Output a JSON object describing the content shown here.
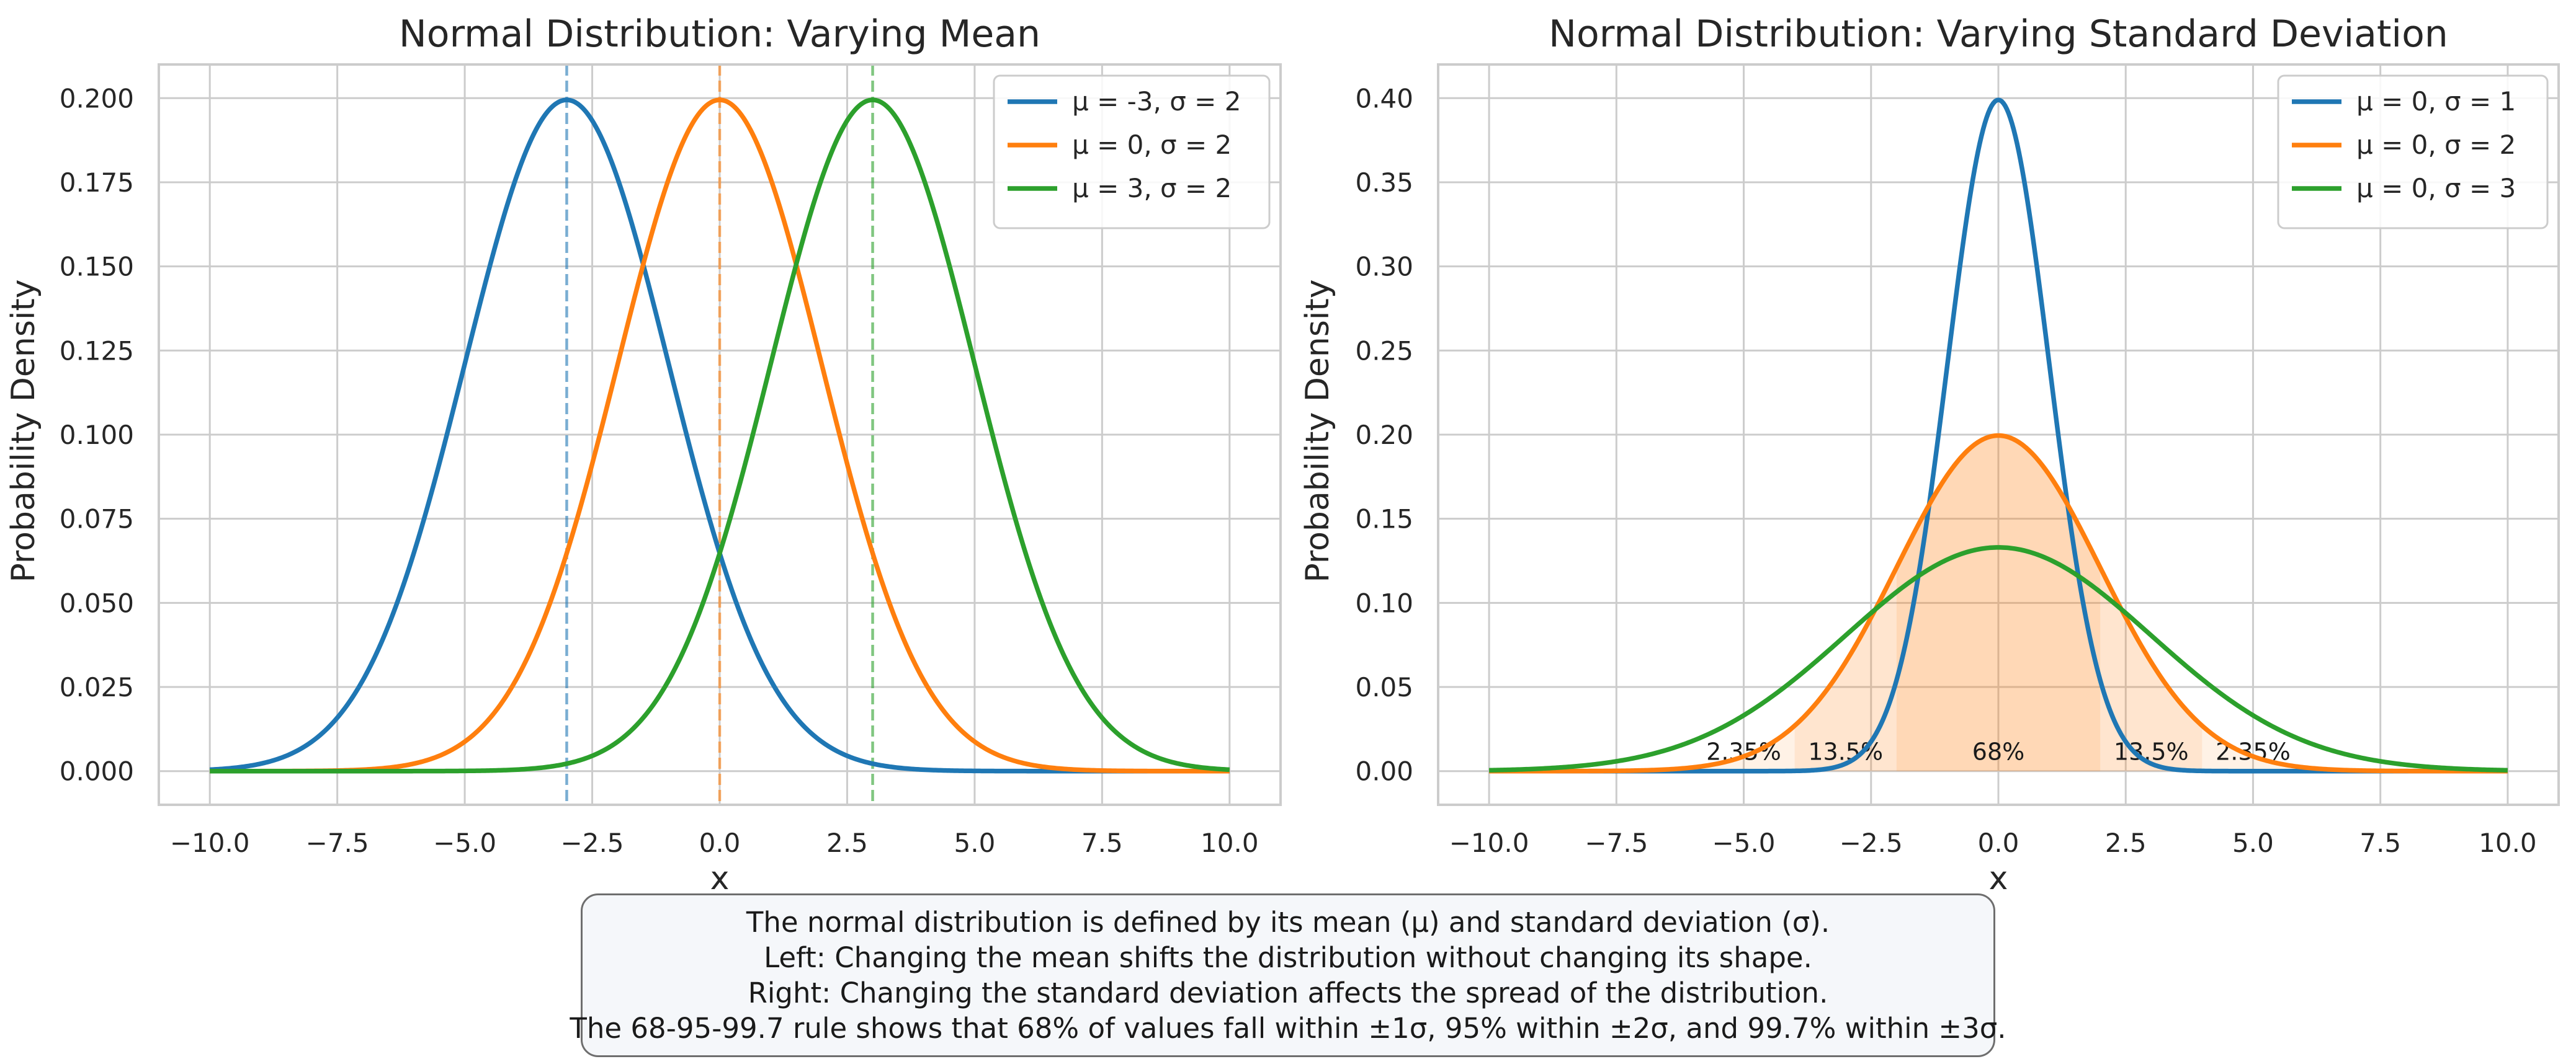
{
  "charts": [
    {
      "type": "line",
      "title": "Normal Distribution: Varying Mean",
      "xlabel": "x",
      "ylabel": "Probability Density",
      "xlim": [
        -11,
        11
      ],
      "ylim": [
        -0.01,
        0.21
      ],
      "xticks": [
        -10,
        -7.5,
        -5,
        -2.5,
        0,
        2.5,
        5,
        7.5,
        10
      ],
      "xtick_labels": [
        "−10.0",
        "−7.5",
        "−5.0",
        "−2.5",
        "0.0",
        "2.5",
        "5.0",
        "7.5",
        "10.0"
      ],
      "yticks": [
        0,
        0.025,
        0.05,
        0.075,
        0.1,
        0.125,
        0.15,
        0.175,
        0.2
      ],
      "ytick_labels": [
        "0.000",
        "0.025",
        "0.050",
        "0.075",
        "0.100",
        "0.125",
        "0.150",
        "0.175",
        "0.200"
      ],
      "legend_position": "top-right",
      "series": [
        {
          "name": "μ = -3, σ = 2",
          "mu": -3,
          "sigma": 2,
          "color": "#1f77b4",
          "mean_line": true
        },
        {
          "name": "μ = 0, σ = 2",
          "mu": 0,
          "sigma": 2,
          "color": "#ff7f0e",
          "mean_line": true
        },
        {
          "name": "μ = 3, σ = 2",
          "mu": 3,
          "sigma": 2,
          "color": "#2ca02c",
          "mean_line": true
        }
      ]
    },
    {
      "type": "line",
      "title": "Normal Distribution: Varying Standard Deviation",
      "xlabel": "x",
      "ylabel": "Probability Density",
      "xlim": [
        -11,
        11
      ],
      "ylim": [
        -0.02,
        0.42
      ],
      "xticks": [
        -10,
        -7.5,
        -5,
        -2.5,
        0,
        2.5,
        5,
        7.5,
        10
      ],
      "xtick_labels": [
        "−10.0",
        "−7.5",
        "−5.0",
        "−2.5",
        "0.0",
        "2.5",
        "5.0",
        "7.5",
        "10.0"
      ],
      "yticks": [
        0,
        0.05,
        0.1,
        0.15,
        0.2,
        0.25,
        0.3,
        0.35,
        0.4
      ],
      "ytick_labels": [
        "0.00",
        "0.05",
        "0.10",
        "0.15",
        "0.20",
        "0.25",
        "0.30",
        "0.35",
        "0.40"
      ],
      "legend_position": "top-right",
      "series": [
        {
          "name": "μ = 0, σ = 1",
          "mu": 0,
          "sigma": 1,
          "color": "#1f77b4"
        },
        {
          "name": "μ = 0, σ = 2",
          "mu": 0,
          "sigma": 2,
          "color": "#ff7f0e"
        },
        {
          "name": "μ = 0, σ = 3",
          "mu": 0,
          "sigma": 3,
          "color": "#2ca02c"
        }
      ],
      "shaded_regions": [
        {
          "from": -2,
          "to": 2,
          "opacity": 0.3,
          "label": "68%",
          "label_x": 0
        },
        {
          "from": -4,
          "to": -2,
          "opacity": 0.2,
          "label": "13.5%",
          "label_x": -3.0
        },
        {
          "from": 2,
          "to": 4,
          "opacity": 0.2,
          "label": "13.5%",
          "label_x": 3.0
        },
        {
          "from": -6,
          "to": -4,
          "opacity": 0.1,
          "label": "2.35%",
          "label_x": -5.0
        },
        {
          "from": 4,
          "to": 6,
          "opacity": 0.1,
          "label": "2.35%",
          "label_x": 5.0
        }
      ],
      "shade_color": "#ff7f0e",
      "shade_sigma": 2
    }
  ],
  "caption": {
    "line1": "The normal distribution is defined by its mean (μ) and standard deviation (σ).",
    "line2": "Left: Changing the mean shifts the distribution without changing its shape.",
    "line3": "Right: Changing the standard deviation affects the spread of the distribution.",
    "line4": "The 68-95-99.7 rule shows that 68% of values fall within ±1σ, 95% within ±2σ, and 99.7% within ±3σ."
  }
}
